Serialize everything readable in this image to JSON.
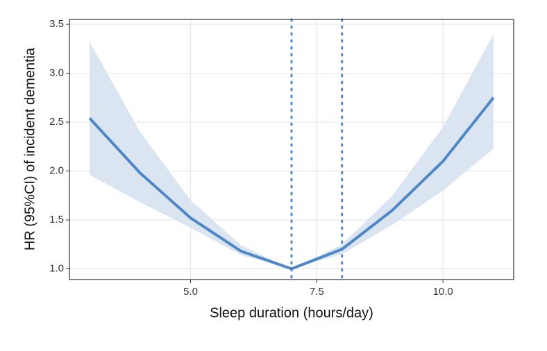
{
  "chart_data": {
    "type": "line",
    "x_label": "Sleep duration (hours/day)",
    "y_label": "HR (95%CI) of incident dementia",
    "x": [
      3,
      4,
      5,
      6,
      7,
      8,
      9,
      10,
      11
    ],
    "values": [
      2.54,
      1.98,
      1.52,
      1.18,
      1.0,
      1.2,
      1.6,
      2.1,
      2.75
    ],
    "color": "#4f86c6",
    "lower": [
      1.96,
      1.68,
      1.42,
      1.14,
      1.0,
      1.15,
      1.45,
      1.8,
      2.23
    ],
    "upper": [
      3.32,
      2.4,
      1.7,
      1.24,
      1.0,
      1.25,
      1.75,
      2.45,
      3.4
    ],
    "band_color": "#dbe5f1",
    "vlines": [
      7,
      8
    ],
    "xlim": [
      2.6,
      11.4
    ],
    "ylim": [
      0.89,
      3.55
    ],
    "xticks": [
      {
        "value": 5,
        "label": "5.0"
      },
      7.5,
      {
        "value": 10,
        "label": "10.0"
      }
    ],
    "yticks": [
      {
        "value": 1,
        "label": "1.0"
      },
      1.5,
      {
        "value": 2,
        "label": "2.0"
      },
      2.5,
      {
        "value": 3,
        "label": "3.0"
      },
      3.5
    ],
    "grid": true
  }
}
